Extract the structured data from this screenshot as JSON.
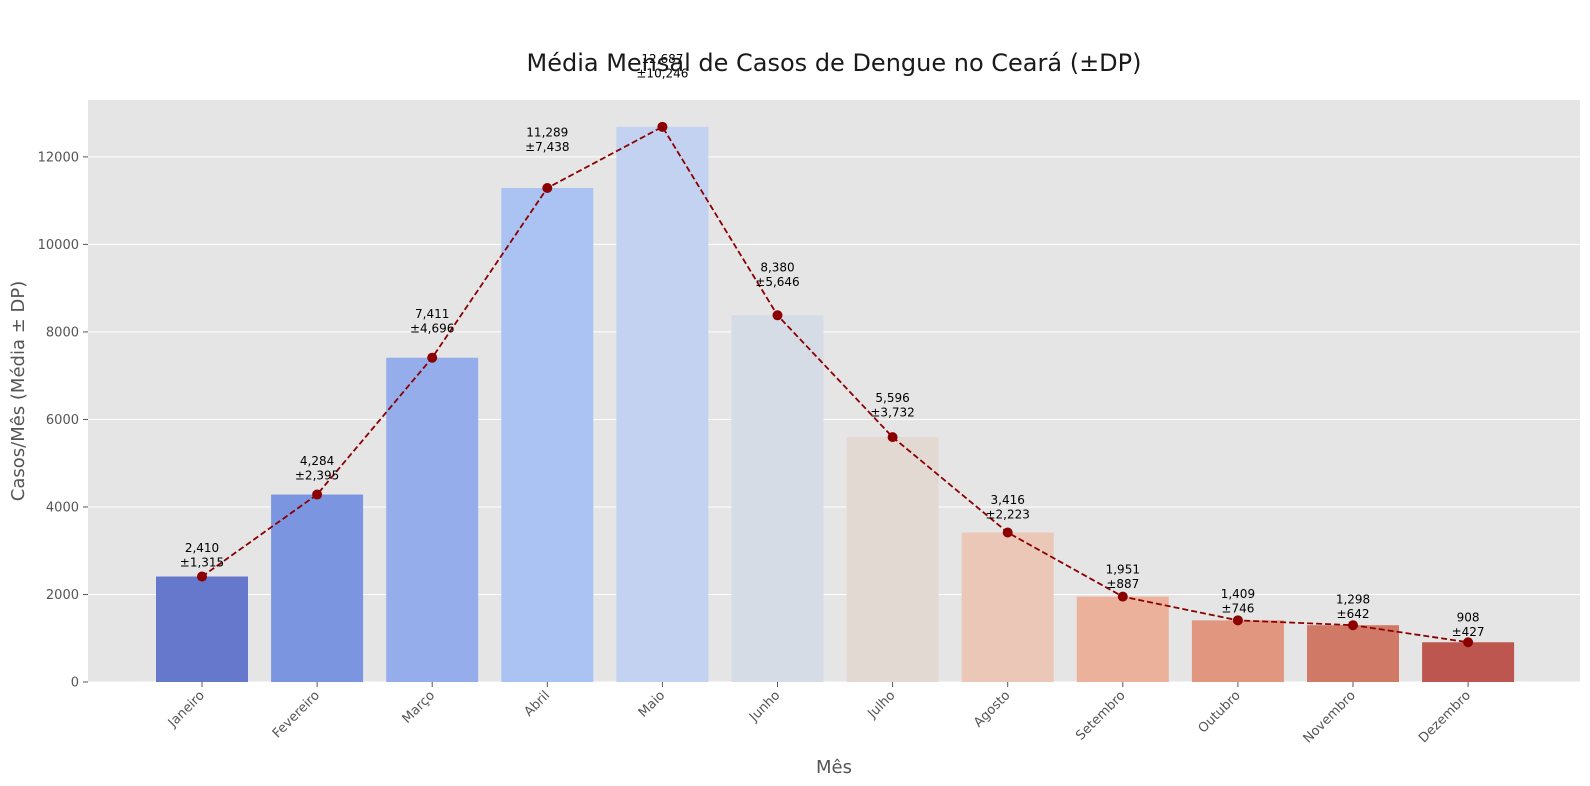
{
  "chart_data": {
    "type": "bar",
    "title": "Média Mensal de Casos de Dengue no Ceará (±DP)",
    "xlabel": "Mês",
    "ylabel": "Casos/Mês (Média ± DP)",
    "categories": [
      "Janeiro",
      "Fevereiro",
      "Março",
      "Abril",
      "Maio",
      "Junho",
      "Julho",
      "Agosto",
      "Setembro",
      "Outubro",
      "Novembro",
      "Dezembro"
    ],
    "values": [
      2410,
      4284,
      7411,
      11289,
      12687,
      8380,
      5596,
      3416,
      1951,
      1409,
      1298,
      908
    ],
    "std": [
      1315,
      2395,
      4696,
      7438,
      10246,
      5646,
      3732,
      2223,
      887,
      746,
      642,
      427
    ],
    "value_labels": [
      "2,410",
      "4,284",
      "7,411",
      "11,289",
      "12,687",
      "8,380",
      "5,596",
      "3,416",
      "1,951",
      "1,409",
      "1,298",
      "908"
    ],
    "std_labels": [
      "±1,315",
      "±2,395",
      "±4,696",
      "±7,438",
      "±10,246",
      "±5,646",
      "±3,732",
      "±2,223",
      "±887",
      "±746",
      "±642",
      "±427"
    ],
    "bar_colors": [
      "#6578cc",
      "#7b95e0",
      "#95aeeb",
      "#aac3f3",
      "#c3d2f0",
      "#d6dce5",
      "#e3d9d3",
      "#eac7b7",
      "#ebb19b",
      "#e0967f",
      "#d17967",
      "#bc564f"
    ],
    "line_color": "#8b0000",
    "line_style": "dashed",
    "ylim": [
      0,
      13300
    ],
    "yticks": [
      0,
      2000,
      4000,
      6000,
      8000,
      10000,
      12000
    ],
    "grid": true,
    "background": "#e5e5e5"
  }
}
